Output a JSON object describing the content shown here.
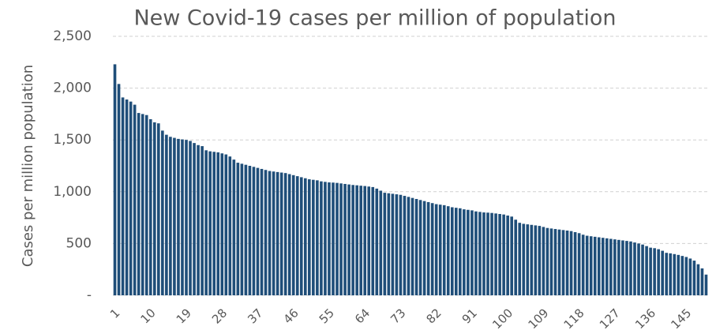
{
  "chart_data": {
    "type": "bar",
    "title": "New Covid-19 cases per million of population",
    "y_label": "Cases per million population",
    "color": "#1f4e79",
    "grid": true,
    "categories": [
      "1",
      null,
      null,
      null,
      null,
      null,
      null,
      null,
      null,
      "10",
      null,
      null,
      null,
      null,
      null,
      null,
      null,
      null,
      "19",
      null,
      null,
      null,
      null,
      null,
      null,
      null,
      null,
      "28",
      null,
      null,
      null,
      null,
      null,
      null,
      null,
      null,
      "37",
      null,
      null,
      null,
      null,
      null,
      null,
      null,
      null,
      "46",
      null,
      null,
      null,
      null,
      null,
      null,
      null,
      null,
      "55",
      null,
      null,
      null,
      null,
      null,
      null,
      null,
      null,
      "64",
      null,
      null,
      null,
      null,
      null,
      null,
      null,
      null,
      "73",
      null,
      null,
      null,
      null,
      null,
      null,
      null,
      null,
      "82",
      null,
      null,
      null,
      null,
      null,
      null,
      null,
      null,
      "91",
      null,
      null,
      null,
      null,
      null,
      null,
      null,
      null,
      "100",
      null,
      null,
      null,
      null,
      null,
      null,
      null,
      null,
      "109",
      null,
      null,
      null,
      null,
      null,
      null,
      null,
      null,
      "118",
      null,
      null,
      null,
      null,
      null,
      null,
      null,
      null,
      "127",
      null,
      null,
      null,
      null,
      null,
      null,
      null,
      null,
      "136",
      null,
      null,
      null,
      null,
      null,
      null,
      null,
      null,
      "145",
      null,
      null,
      null,
      null,
      null
    ],
    "values": [
      2230,
      2040,
      1910,
      1890,
      1870,
      1840,
      1760,
      1750,
      1740,
      1700,
      1670,
      1660,
      1590,
      1550,
      1530,
      1520,
      1510,
      1505,
      1500,
      1490,
      1470,
      1450,
      1440,
      1400,
      1390,
      1385,
      1380,
      1370,
      1360,
      1340,
      1310,
      1280,
      1270,
      1260,
      1250,
      1240,
      1230,
      1220,
      1210,
      1200,
      1195,
      1190,
      1185,
      1180,
      1170,
      1160,
      1150,
      1140,
      1130,
      1120,
      1115,
      1110,
      1100,
      1095,
      1090,
      1088,
      1085,
      1080,
      1075,
      1070,
      1065,
      1062,
      1058,
      1055,
      1050,
      1045,
      1030,
      1010,
      990,
      985,
      980,
      975,
      970,
      960,
      950,
      940,
      930,
      920,
      910,
      900,
      890,
      880,
      875,
      870,
      860,
      850,
      845,
      840,
      830,
      825,
      820,
      810,
      805,
      800,
      798,
      795,
      790,
      785,
      780,
      770,
      760,
      730,
      700,
      690,
      685,
      680,
      675,
      670,
      660,
      650,
      645,
      640,
      635,
      630,
      625,
      620,
      610,
      600,
      585,
      575,
      570,
      565,
      560,
      555,
      550,
      545,
      540,
      535,
      530,
      525,
      520,
      510,
      500,
      490,
      475,
      460,
      455,
      445,
      430,
      410,
      405,
      398,
      390,
      380,
      370,
      355,
      335,
      300,
      260,
      200
    ],
    "ylim": [
      0,
      2500
    ],
    "yticks": [
      {
        "value": 0,
        "label": "-"
      },
      500,
      {
        "value": 1000,
        "label": "1,000"
      },
      {
        "value": 1500,
        "label": "1,500"
      },
      {
        "value": 2000,
        "label": "2,000"
      },
      {
        "value": 2500,
        "label": "2,500"
      }
    ]
  }
}
